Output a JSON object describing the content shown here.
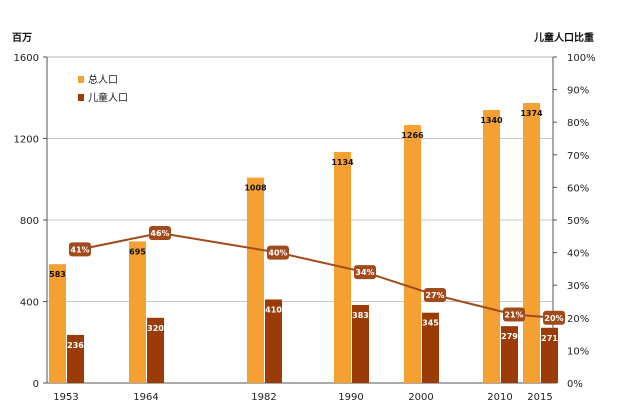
{
  "chart_data": {
    "type": "bar",
    "categories": [
      "1953",
      "1964",
      "1982",
      "1990",
      "2000",
      "2010",
      "2015"
    ],
    "series": [
      {
        "name": "总人口",
        "values": [
          583,
          695,
          1008,
          1134,
          1266,
          1340,
          1374
        ],
        "color": "#f5a033",
        "axis": "left"
      },
      {
        "name": "儿童人口",
        "values": [
          236,
          320,
          410,
          383,
          345,
          279,
          271
        ],
        "color": "#9a3b08",
        "axis": "left"
      },
      {
        "name": "儿童人口比重",
        "type": "line",
        "values": [
          41,
          46,
          40,
          34,
          27,
          21,
          20
        ],
        "value_labels": [
          "41%",
          "46%",
          "40%",
          "34%",
          "27%",
          "21%",
          "20%"
        ],
        "color": "#a24a1c",
        "axis": "right"
      }
    ],
    "y_left": {
      "label": "百万",
      "ylim": [
        0,
        1600
      ],
      "ticks": [
        "0",
        "400",
        "800",
        "1200",
        "1600"
      ]
    },
    "y_right": {
      "label": "儿童人口比重",
      "ylim": [
        0,
        100
      ],
      "ticks": [
        "0%",
        "10%",
        "20%",
        "30%",
        "40%",
        "50%",
        "60%",
        "70%",
        "80%",
        "90%",
        "100%"
      ]
    },
    "grid": true,
    "legend": "top-left"
  }
}
